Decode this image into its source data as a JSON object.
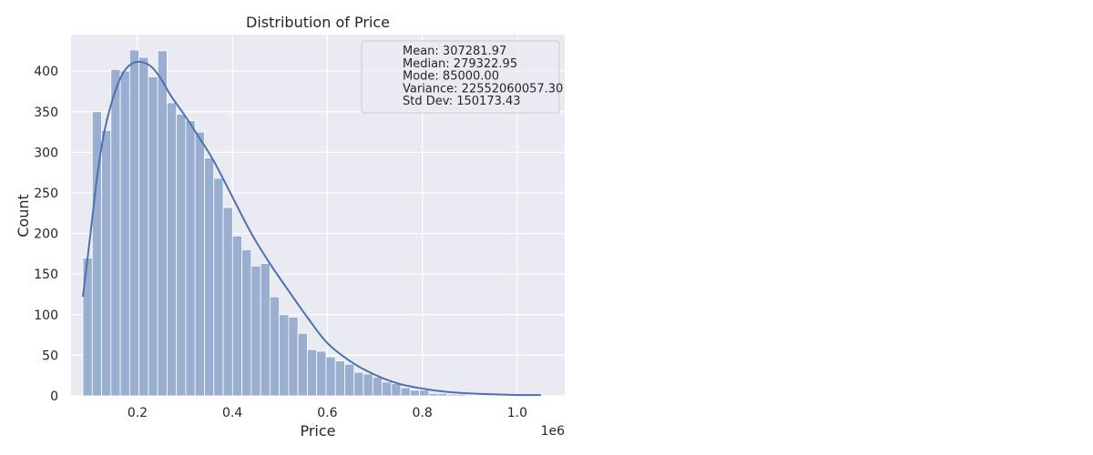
{
  "chart_data": {
    "type": "bar",
    "title": "Distribution of Price",
    "xlabel": "Price",
    "ylabel": "Count",
    "x_offset_label": "1e6",
    "xlim": [
      60000,
      1100000
    ],
    "ylim": [
      0,
      445
    ],
    "x_ticks": [
      {
        "value": 200000,
        "label": "0.2"
      },
      {
        "value": 400000,
        "label": "0.4"
      },
      {
        "value": 600000,
        "label": "0.6"
      },
      {
        "value": 800000,
        "label": "0.8"
      },
      {
        "value": 1000000,
        "label": "1.0"
      }
    ],
    "y_ticks": [
      0,
      50,
      100,
      150,
      200,
      250,
      300,
      350,
      400
    ],
    "bin_start": 85000,
    "bin_width": 19700,
    "counts": [
      170,
      350,
      327,
      402,
      400,
      426,
      417,
      393,
      425,
      361,
      347,
      339,
      325,
      293,
      268,
      232,
      197,
      180,
      160,
      163,
      122,
      100,
      97,
      77,
      57,
      55,
      48,
      43,
      39,
      29,
      27,
      23,
      17,
      15,
      10,
      7,
      7,
      3,
      3,
      2,
      2,
      1,
      1,
      1,
      1,
      1,
      1,
      1,
      1
    ],
    "kde": {
      "x": [
        85000,
        100000,
        115000,
        130000,
        150000,
        170000,
        190000,
        210000,
        230000,
        250000,
        270000,
        300000,
        330000,
        360000,
        400000,
        440000,
        480000,
        520000,
        560000,
        600000,
        650000,
        700000,
        750000,
        800000,
        850000,
        900000,
        950000,
        1000000,
        1050000
      ],
      "y": [
        122,
        195,
        270,
        325,
        370,
        398,
        410,
        411,
        405,
        390,
        370,
        345,
        318,
        290,
        245,
        200,
        162,
        128,
        95,
        65,
        42,
        26,
        15,
        9,
        5,
        3,
        2,
        1,
        1
      ]
    },
    "stats": [
      "Mean: 307281.97",
      "Median: 279322.95",
      "Mode: 85000.00",
      "Variance: 22552060057.30",
      "Std Dev: 150173.43"
    ],
    "legend_position": "top-right",
    "grid": true,
    "colors": {
      "bar_fill": "#9aaed0",
      "bar_stroke": "#ffffff",
      "kde_line": "#4c72b0",
      "plot_background": "#eaeaf2",
      "grid": "#ffffff",
      "legend_fill": "#eaeaf2",
      "legend_stroke": "#cccccc"
    }
  }
}
